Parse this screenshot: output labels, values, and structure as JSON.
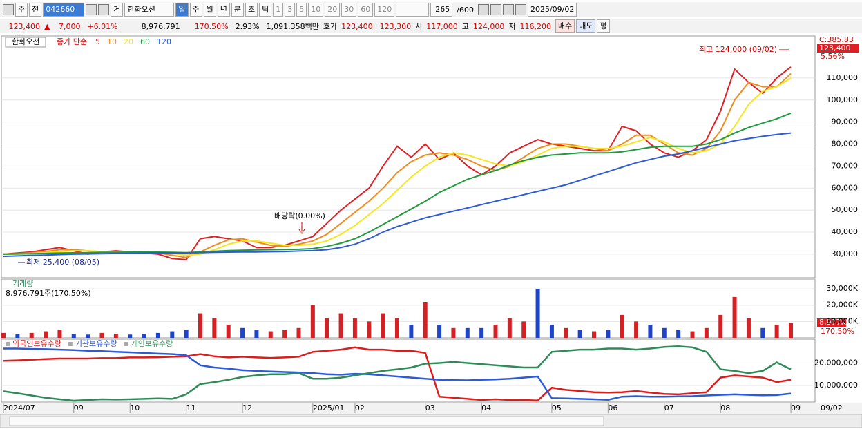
{
  "toolbar": {
    "items": [
      "주",
      "전",
      "042660",
      "거",
      "한화오션",
      "일",
      "주",
      "월",
      "년",
      "분",
      "초",
      "틱",
      "1",
      "3",
      "5",
      "10",
      "20",
      "30",
      "60",
      "120"
    ],
    "count": "265",
    "max": "/600",
    "date": "2025/09/02"
  },
  "quote_bar": {
    "price": "123,400",
    "arrow": "▲",
    "change": "7,000",
    "rate": "+6.01%",
    "volume": "8,976,791",
    "volume_rate": "170.50%",
    "turnover": "2.93%",
    "amount": "1,091,358백만",
    "ask_label": "호가",
    "ask": "123,400",
    "bid": "123,300",
    "open_label": "시",
    "open": "117,000",
    "high_label": "고",
    "high": "124,000",
    "low_label": "저",
    "low": "116,200",
    "buy": "매수",
    "sell": "매도",
    "eval": "평"
  },
  "chart_data": [
    {
      "type": "line",
      "title": "한화오션",
      "legend_title": "종가 단순",
      "categories": [
        "2024/07",
        null,
        null,
        null,
        null,
        "09",
        null,
        null,
        null,
        "10",
        null,
        null,
        null,
        "11",
        null,
        null,
        null,
        "12",
        null,
        null,
        null,
        null,
        "2025/01",
        null,
        null,
        "02",
        null,
        null,
        null,
        null,
        "03",
        null,
        null,
        null,
        "04",
        null,
        null,
        null,
        null,
        "05",
        null,
        null,
        null,
        "06",
        null,
        null,
        null,
        "07",
        null,
        null,
        null,
        "08",
        null,
        null,
        null,
        null,
        "09"
      ],
      "series": [
        {
          "name": "5",
          "color": "#e01e24",
          "values": [
            30000,
            30500,
            31000,
            32000,
            33000,
            31500,
            30000,
            31000,
            31500,
            31000,
            30500,
            30000,
            28000,
            27500,
            37000,
            38000,
            37000,
            36000,
            33000,
            33000,
            34000,
            36000,
            38000,
            44000,
            50000,
            55000,
            60000,
            70000,
            79000,
            74000,
            80000,
            73000,
            76000,
            70000,
            66000,
            70000,
            76000,
            79000,
            82000,
            80000,
            79000,
            78000,
            77000,
            77000,
            88000,
            86000,
            80000,
            76000,
            74000,
            77000,
            82000,
            95000,
            114000,
            108000,
            103000,
            110000,
            115000
          ]
        },
        {
          "name": "10",
          "color": "#f08c1e",
          "values": [
            30000,
            30200,
            30600,
            31200,
            32000,
            32000,
            31500,
            31000,
            31200,
            31200,
            31000,
            30500,
            29500,
            28500,
            31000,
            34000,
            36500,
            37000,
            35500,
            34000,
            33500,
            34500,
            36000,
            39000,
            44000,
            49000,
            54000,
            60000,
            67000,
            72000,
            75000,
            76000,
            75000,
            73000,
            70000,
            68000,
            70000,
            74000,
            78000,
            80000,
            80000,
            79000,
            78000,
            77000,
            80000,
            84000,
            84000,
            80000,
            76000,
            75000,
            78000,
            86000,
            100000,
            108000,
            106000,
            106000,
            112000
          ]
        },
        {
          "name": "20",
          "color": "#f5e61e",
          "values": [
            30000,
            30100,
            30300,
            30700,
            31200,
            31500,
            31500,
            31200,
            31000,
            31000,
            31000,
            30800,
            30300,
            29500,
            30000,
            32000,
            34500,
            36000,
            36000,
            35000,
            34000,
            34000,
            34500,
            36000,
            39000,
            43000,
            48000,
            53000,
            59000,
            65000,
            70000,
            74000,
            76000,
            75000,
            73000,
            71000,
            70000,
            72000,
            75000,
            78000,
            79000,
            79000,
            78000,
            78000,
            79000,
            81000,
            83000,
            81000,
            78000,
            76000,
            77000,
            80000,
            88000,
            98000,
            104000,
            106000,
            110000
          ]
        },
        {
          "name": "60",
          "color": "#1f9a3c",
          "values": [
            30000,
            30100,
            30200,
            30300,
            30500,
            30600,
            30700,
            30800,
            30800,
            30900,
            30900,
            30900,
            30800,
            30700,
            31000,
            31300,
            31600,
            31800,
            31900,
            32000,
            32100,
            32200,
            32500,
            33500,
            35000,
            37000,
            40000,
            43500,
            47000,
            50500,
            54000,
            58000,
            61000,
            64000,
            66000,
            68000,
            70500,
            72500,
            74000,
            75000,
            75500,
            76000,
            76000,
            76000,
            76500,
            77500,
            78500,
            79000,
            79000,
            79000,
            80000,
            82000,
            85000,
            87500,
            89500,
            91500,
            94000
          ]
        },
        {
          "name": "120",
          "color": "#2c5ad8",
          "values": [
            29000,
            29200,
            29400,
            29600,
            29800,
            30000,
            30100,
            30200,
            30300,
            30400,
            30500,
            30600,
            30600,
            30600,
            30700,
            30800,
            30900,
            31000,
            31000,
            31100,
            31200,
            31400,
            31600,
            32000,
            33000,
            34500,
            37000,
            40000,
            42500,
            44500,
            46500,
            48000,
            49500,
            51000,
            52500,
            54000,
            55500,
            57000,
            58500,
            60000,
            61500,
            63500,
            65500,
            67500,
            69500,
            71500,
            73000,
            74500,
            75500,
            77000,
            78500,
            80000,
            81500,
            82500,
            83500,
            84300,
            85000
          ]
        }
      ],
      "ylim": [
        19300,
        129100
      ],
      "yticks": [
        {
          "value": 30000,
          "label": "30,000"
        },
        {
          "value": 40000,
          "label": "40,000"
        },
        {
          "value": 50000,
          "label": "50,000"
        },
        {
          "value": 60000,
          "label": "60,000"
        },
        {
          "value": 70000,
          "label": "70,000"
        },
        {
          "value": 80000,
          "label": "80,000"
        },
        {
          "value": 90000,
          "label": "90,000"
        },
        {
          "value": 100000,
          "label": "100,000"
        },
        {
          "value": 110000,
          "label": "110,000"
        }
      ],
      "grid": true,
      "annotations": {
        "high": "최고 124,000 (09/02)",
        "low": "최저 25,400 (08/05)",
        "dividend": "배당락(0.00%)",
        "c_value": "C:385.83",
        "last_price": "123,400",
        "last_rate": "5.56%"
      },
      "axis_end_label": "09/02"
    },
    {
      "type": "bar",
      "title": "거래량",
      "subtitle": "8,976,791주(170.50%)",
      "values": [
        3000,
        2500,
        3000,
        4000,
        5000,
        2500,
        2000,
        3000,
        2500,
        2000,
        2500,
        3000,
        4000,
        5000,
        15000,
        12000,
        8000,
        6000,
        5000,
        4000,
        5000,
        6000,
        20000,
        12000,
        15000,
        12000,
        10000,
        15000,
        12000,
        8000,
        22000,
        8000,
        6000,
        6000,
        6000,
        8000,
        12000,
        10000,
        30000,
        8000,
        6000,
        5000,
        4000,
        5000,
        14000,
        10000,
        8000,
        6000,
        5000,
        4000,
        6000,
        14000,
        25000,
        12000,
        6000,
        8000,
        8977
      ],
      "rising": [
        true,
        false,
        true,
        true,
        true,
        false,
        false,
        true,
        true,
        false,
        false,
        false,
        false,
        false,
        true,
        true,
        true,
        false,
        false,
        true,
        true,
        true,
        true,
        true,
        true,
        true,
        true,
        true,
        true,
        false,
        true,
        false,
        true,
        false,
        false,
        true,
        true,
        true,
        false,
        false,
        true,
        false,
        true,
        false,
        true,
        true,
        false,
        false,
        false,
        true,
        true,
        true,
        true,
        true,
        false,
        true,
        true
      ],
      "up_color": "#d32226",
      "down_color": "#1e44c8",
      "ylim": [
        0,
        35960
      ],
      "yticks": [
        {
          "value": 10000,
          "label": "10,000K"
        },
        {
          "value": 20000,
          "label": "20,000K"
        },
        {
          "value": 30000,
          "label": "30,000K"
        }
      ],
      "grid": true,
      "last_label": "8,977K",
      "last_rate": "170.50%"
    },
    {
      "type": "line",
      "series": [
        {
          "name": "외국인보유수량",
          "color": "#dd1c1c",
          "values": [
            21000000,
            21200000,
            21500000,
            21800000,
            22000000,
            22000000,
            22000000,
            22200000,
            22200000,
            22500000,
            22500000,
            22600000,
            22800000,
            23000000,
            24000000,
            23000000,
            22500000,
            22800000,
            22500000,
            22300000,
            22500000,
            22800000,
            25000000,
            25500000,
            26000000,
            27000000,
            26000000,
            26000000,
            25500000,
            25500000,
            24500000,
            5000000,
            4500000,
            4000000,
            3500000,
            3800000,
            3500000,
            3500000,
            3300000,
            9000000,
            8000000,
            7500000,
            7000000,
            6800000,
            7000000,
            7500000,
            6800000,
            6200000,
            6000000,
            6500000,
            7000000,
            13500000,
            14500000,
            14000000,
            13500000,
            11500000,
            12500000
          ]
        },
        {
          "name": "기관보유수량",
          "color": "#2c5ad8",
          "values": [
            26500000,
            26500000,
            26300000,
            26200000,
            26000000,
            25800000,
            25500000,
            25300000,
            25000000,
            24800000,
            24500000,
            24200000,
            24000000,
            23500000,
            19000000,
            18000000,
            17500000,
            16800000,
            16500000,
            16200000,
            16000000,
            15800000,
            15500000,
            15000000,
            14800000,
            15200000,
            15000000,
            14500000,
            14000000,
            13500000,
            13000000,
            12500000,
            12400000,
            12300000,
            12500000,
            12700000,
            13000000,
            13500000,
            14000000,
            4300000,
            4200000,
            4000000,
            3800000,
            3600000,
            5000000,
            5200000,
            5000000,
            5000000,
            5100000,
            5200000,
            5500000,
            5800000,
            6000000,
            5800000,
            5600000,
            5700000,
            6400000
          ]
        },
        {
          "name": "개인보유수량",
          "color": "#2e8b57",
          "values": [
            7400000,
            6500000,
            5500000,
            4500000,
            3800000,
            3200000,
            3500000,
            3800000,
            3700000,
            3800000,
            4000000,
            4200000,
            4000000,
            6000000,
            10600000,
            11500000,
            12500000,
            13800000,
            14500000,
            15000000,
            15000000,
            15500000,
            13000000,
            13000000,
            13500000,
            14500000,
            15500000,
            16500000,
            17200000,
            18000000,
            19700000,
            20000000,
            20500000,
            20000000,
            19500000,
            19000000,
            18500000,
            18000000,
            18000000,
            25000000,
            25500000,
            26000000,
            26000000,
            26500000,
            26500000,
            26000000,
            26500000,
            27200000,
            27500000,
            27000000,
            25000000,
            17200000,
            16500000,
            15500000,
            16500000,
            20300000,
            17200000
          ]
        }
      ],
      "ylim": [
        2580000,
        30650000
      ],
      "yticks": [
        {
          "value": 10000000,
          "label": "10,000,000"
        },
        {
          "value": 20000000,
          "label": "20,000,000"
        }
      ],
      "grid": true
    }
  ]
}
